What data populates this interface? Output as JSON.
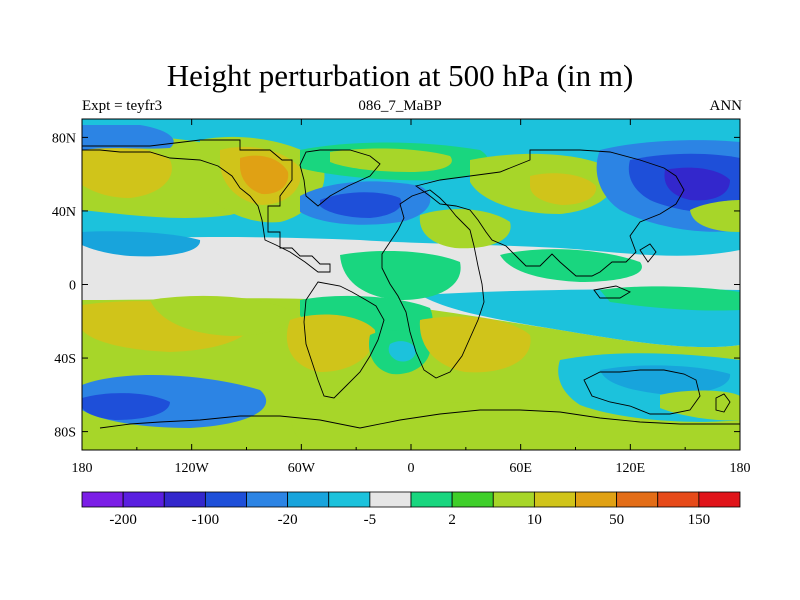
{
  "title": "Height perturbation at 500 hPa (in m)",
  "left_label": "Expt = teyfr3",
  "center_label": "086_7_MaBP",
  "right_label": "ANN",
  "chart_data": {
    "type": "heatmap",
    "subtype": "filled-contour map",
    "title": "Height perturbation at 500 hPa (in m)",
    "x_ticks": [
      "180",
      "120W",
      "60W",
      "0",
      "60E",
      "120E",
      "180"
    ],
    "x_tick_values": [
      -180,
      -120,
      -60,
      0,
      60,
      120,
      180
    ],
    "y_ticks": [
      "80N",
      "40N",
      "0",
      "40S",
      "80S"
    ],
    "y_tick_values": [
      80,
      40,
      0,
      -40,
      -80
    ],
    "xlim": [
      -180,
      180
    ],
    "ylim": [
      -90,
      90
    ],
    "colorbar": {
      "labels": [
        "-200",
        "-100",
        "-20",
        "-5",
        "2",
        "10",
        "50",
        "150"
      ],
      "label_boundaries": [
        1,
        3,
        5,
        7,
        9,
        11,
        13,
        15
      ],
      "colors": [
        "#7b1ee6",
        "#5a1fe0",
        "#3327cc",
        "#1e4fd9",
        "#2c84e4",
        "#18a4dc",
        "#1cc2dc",
        "#e6e6e6",
        "#19d67f",
        "#3fcf2a",
        "#a7d629",
        "#d0c41a",
        "#e0a114",
        "#e36d17",
        "#e64a19",
        "#e0141a"
      ]
    },
    "features": [
      {
        "name": "n-pacific-high",
        "lon": -158,
        "lat": 64,
        "value": 50
      },
      {
        "name": "n-america-high",
        "lon": -80,
        "lat": 60,
        "value": 100
      },
      {
        "name": "n-atlantic-low",
        "lon": -25,
        "lat": 45,
        "value": -20
      },
      {
        "name": "siberia-high",
        "lon": 85,
        "lat": 55,
        "value": 50
      },
      {
        "name": "n-pacific-low",
        "lon": 160,
        "lat": 55,
        "value": -50
      },
      {
        "name": "tropics-neutral",
        "lon": -100,
        "lat": 8,
        "value": 0
      },
      {
        "name": "s-america-high",
        "lon": -30,
        "lat": -35,
        "value": 50
      },
      {
        "name": "s-atlantic-low",
        "lon": -4,
        "lat": -38,
        "value": -10
      },
      {
        "name": "s-indian-high",
        "lon": 30,
        "lat": -38,
        "value": 50
      },
      {
        "name": "s-pacific-low",
        "lon": -150,
        "lat": -65,
        "value": -20
      },
      {
        "name": "antarctic-high",
        "lon": 40,
        "lat": -80,
        "value": 10
      }
    ]
  }
}
